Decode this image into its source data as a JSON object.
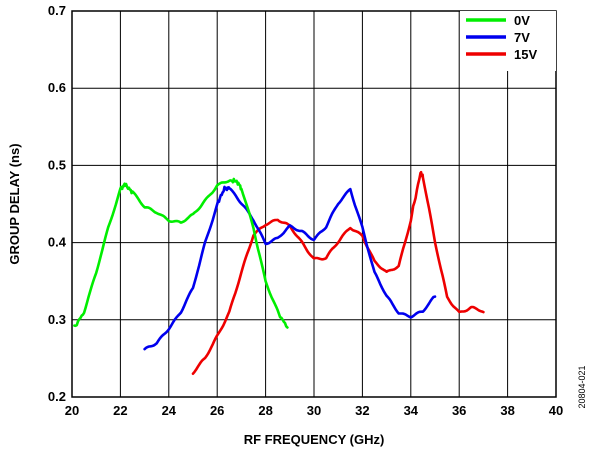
{
  "figure_id": "20804-021",
  "chart_data": {
    "type": "line",
    "xlabel": "RF FREQUENCY (GHz)",
    "ylabel": "GROUP DELAY (ns)",
    "xlim": [
      20,
      40
    ],
    "ylim": [
      0.2,
      0.7
    ],
    "x_ticks": [
      "20",
      "22",
      "24",
      "26",
      "28",
      "30",
      "32",
      "34",
      "36",
      "38",
      "40"
    ],
    "y_ticks": [
      "0.2",
      "0.3",
      "0.4",
      "0.5",
      "0.6",
      "0.7"
    ],
    "grid": true,
    "legend_position": "top-right",
    "series": [
      {
        "name": "0V",
        "color": "#00ee00",
        "x": [
          20.1,
          20.5,
          21.0,
          21.5,
          22.0,
          22.2,
          22.5,
          23.0,
          23.5,
          24.0,
          24.5,
          25.0,
          25.5,
          26.0,
          26.5,
          26.8,
          27.0,
          27.5,
          28.0,
          28.5,
          28.9
        ],
        "y": [
          0.29,
          0.31,
          0.36,
          0.42,
          0.47,
          0.475,
          0.465,
          0.445,
          0.44,
          0.43,
          0.425,
          0.435,
          0.455,
          0.475,
          0.48,
          0.48,
          0.47,
          0.42,
          0.35,
          0.31,
          0.29
        ]
      },
      {
        "name": "7V",
        "color": "#0000ee",
        "x": [
          23.0,
          23.5,
          24.0,
          24.5,
          25.0,
          25.5,
          26.0,
          26.3,
          26.5,
          27.0,
          27.5,
          28.0,
          28.5,
          29.0,
          29.5,
          30.0,
          30.5,
          31.0,
          31.5,
          32.0,
          32.5,
          33.0,
          33.5,
          34.0,
          34.5,
          35.0
        ],
        "y": [
          0.26,
          0.27,
          0.29,
          0.31,
          0.34,
          0.4,
          0.45,
          0.47,
          0.47,
          0.45,
          0.43,
          0.4,
          0.405,
          0.42,
          0.415,
          0.405,
          0.42,
          0.45,
          0.47,
          0.42,
          0.36,
          0.33,
          0.31,
          0.305,
          0.31,
          0.33
        ]
      },
      {
        "name": "15V",
        "color": "#ee0000",
        "x": [
          25.0,
          25.5,
          26.0,
          26.5,
          27.0,
          27.5,
          28.0,
          28.5,
          29.0,
          29.5,
          30.0,
          30.5,
          31.0,
          31.5,
          32.0,
          32.5,
          33.0,
          33.5,
          34.0,
          34.4,
          34.5,
          35.0,
          35.5,
          36.0,
          36.5,
          37.0
        ],
        "y": [
          0.23,
          0.25,
          0.28,
          0.31,
          0.36,
          0.41,
          0.425,
          0.43,
          0.42,
          0.4,
          0.38,
          0.38,
          0.4,
          0.42,
          0.41,
          0.375,
          0.36,
          0.37,
          0.43,
          0.49,
          0.485,
          0.4,
          0.33,
          0.31,
          0.315,
          0.31
        ]
      }
    ]
  }
}
